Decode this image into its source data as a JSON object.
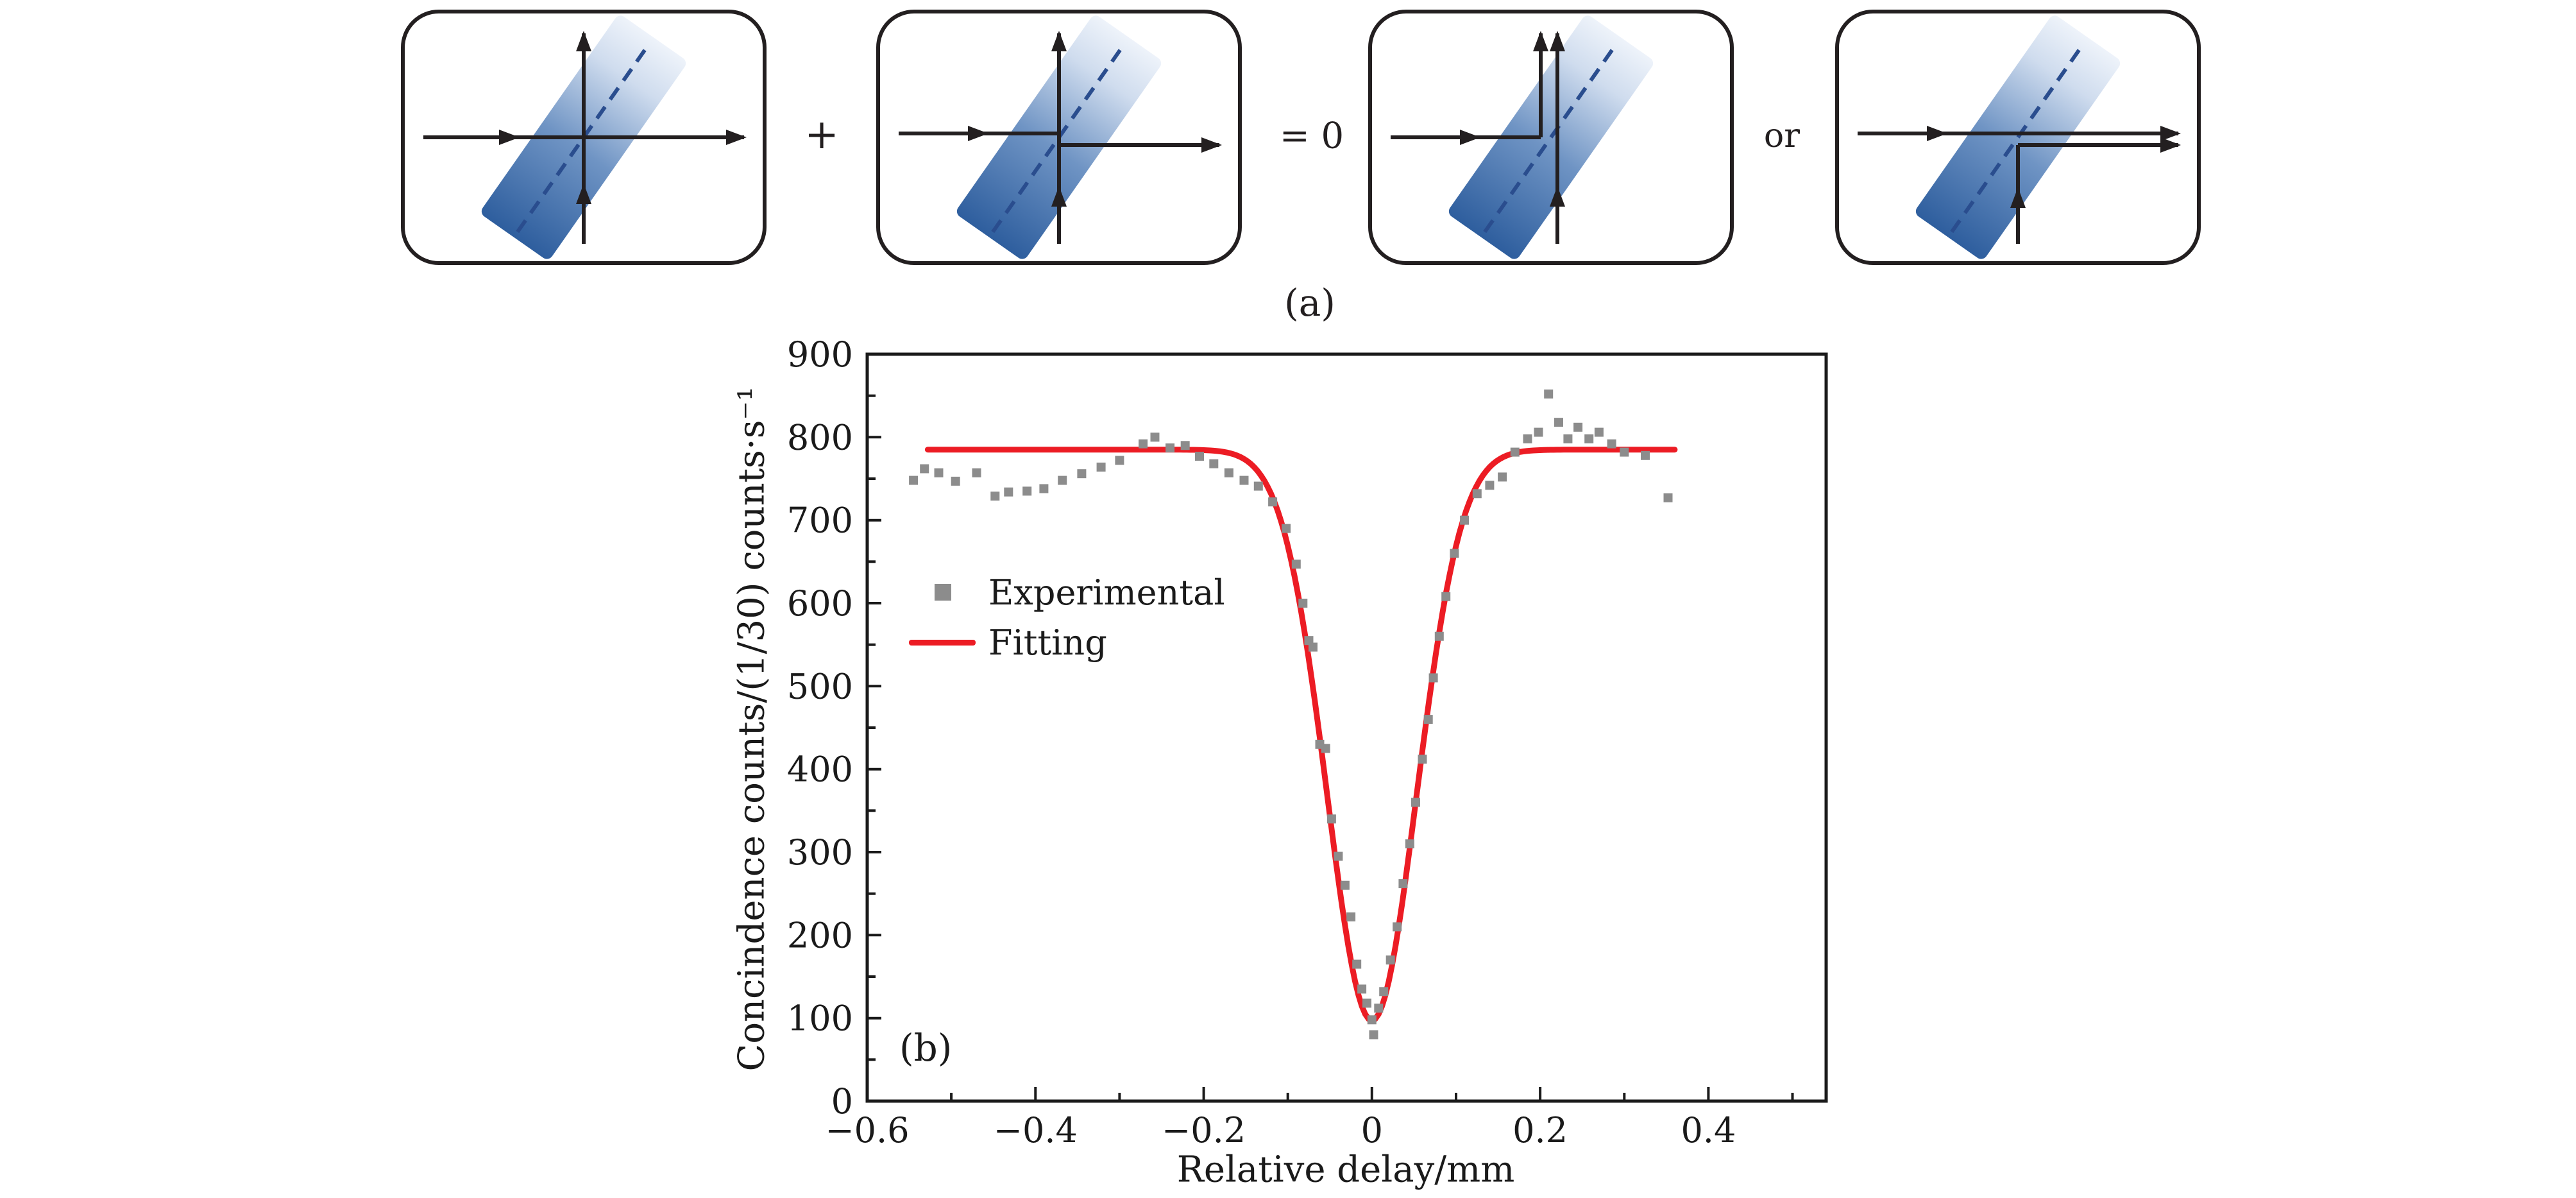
{
  "diagram": {
    "caption": "(a)",
    "operators": {
      "plus": "+",
      "equals_zero": "= 0",
      "or": "or"
    },
    "panels": [
      {
        "name": "both-photons-transmitted",
        "type": "cross"
      },
      {
        "name": "both-photons-reflected",
        "type": "reflect"
      },
      {
        "name": "both-photons-exit-top",
        "type": "both-up"
      },
      {
        "name": "both-photons-exit-right",
        "type": "both-right"
      }
    ],
    "colors": {
      "splitter_dark": "#2e5e9e",
      "splitter_mid": "#6f94c4",
      "splitter_mid2": "#cfdcee",
      "splitter_light": "#eef3fa",
      "dash": "#2a4d8e",
      "stroke": "#231f20"
    }
  },
  "chart_data": {
    "type": "scatter",
    "panel_label": "(b)",
    "xlabel": "Relative delay/mm",
    "ylabel": "Concindence counts/(1/30) counts·s⁻¹",
    "xlim": [
      -0.6,
      0.54
    ],
    "ylim": [
      0,
      900
    ],
    "xticks": [
      -0.6,
      -0.4,
      -0.2,
      0,
      0.2,
      0.4
    ],
    "xtick_labels": [
      "−0.6",
      "−0.4",
      "−0.2",
      "0",
      "0.2",
      "0.4"
    ],
    "yticks": [
      0,
      100,
      200,
      300,
      400,
      500,
      600,
      700,
      800,
      900
    ],
    "x_minor_step": 0.1,
    "y_minor_step": 50,
    "grid": false,
    "legend_position": "upper-left-inside",
    "legend": [
      {
        "label": "Experimental",
        "marker": "square",
        "color": "#8c8c8c"
      },
      {
        "label": "Fitting",
        "marker": "line",
        "color": "#ec1c24"
      }
    ],
    "series": [
      {
        "name": "Experimental",
        "type": "scatter"
      },
      {
        "name": "Fitting",
        "type": "line"
      }
    ],
    "experimental_points": [
      [
        -0.545,
        748
      ],
      [
        -0.532,
        762
      ],
      [
        -0.515,
        757
      ],
      [
        -0.495,
        747
      ],
      [
        -0.47,
        757
      ],
      [
        -0.448,
        729
      ],
      [
        -0.432,
        734
      ],
      [
        -0.41,
        735
      ],
      [
        -0.39,
        738
      ],
      [
        -0.368,
        748
      ],
      [
        -0.345,
        756
      ],
      [
        -0.322,
        764
      ],
      [
        -0.3,
        772
      ],
      [
        -0.272,
        792
      ],
      [
        -0.258,
        800
      ],
      [
        -0.24,
        787
      ],
      [
        -0.222,
        790
      ],
      [
        -0.205,
        777
      ],
      [
        -0.188,
        768
      ],
      [
        -0.17,
        757
      ],
      [
        -0.152,
        748
      ],
      [
        -0.135,
        741
      ],
      [
        -0.118,
        722
      ],
      [
        -0.102,
        690
      ],
      [
        -0.09,
        647
      ],
      [
        -0.082,
        600
      ],
      [
        -0.075,
        555
      ],
      [
        -0.07,
        547
      ],
      [
        -0.062,
        430
      ],
      [
        -0.055,
        425
      ],
      [
        -0.048,
        340
      ],
      [
        -0.04,
        295
      ],
      [
        -0.032,
        260
      ],
      [
        -0.025,
        222
      ],
      [
        -0.018,
        165
      ],
      [
        -0.012,
        135
      ],
      [
        -0.006,
        118
      ],
      [
        0.0,
        98
      ],
      [
        0.002,
        80
      ],
      [
        0.008,
        112
      ],
      [
        0.014,
        132
      ],
      [
        0.022,
        170
      ],
      [
        0.03,
        210
      ],
      [
        0.037,
        262
      ],
      [
        0.045,
        310
      ],
      [
        0.052,
        360
      ],
      [
        0.06,
        412
      ],
      [
        0.067,
        460
      ],
      [
        0.073,
        510
      ],
      [
        0.08,
        560
      ],
      [
        0.088,
        608
      ],
      [
        0.098,
        660
      ],
      [
        0.11,
        700
      ],
      [
        0.125,
        732
      ],
      [
        0.14,
        742
      ],
      [
        0.155,
        752
      ],
      [
        0.17,
        782
      ],
      [
        0.185,
        798
      ],
      [
        0.198,
        806
      ],
      [
        0.21,
        852
      ],
      [
        0.222,
        818
      ],
      [
        0.233,
        798
      ],
      [
        0.245,
        812
      ],
      [
        0.258,
        798
      ],
      [
        0.27,
        806
      ],
      [
        0.285,
        792
      ],
      [
        0.3,
        782
      ],
      [
        0.325,
        778
      ],
      [
        0.352,
        727
      ]
    ],
    "fit": {
      "model": "inverted_gaussian",
      "baseline": 785,
      "minimum": 97,
      "center": 0,
      "sigma": 0.053,
      "x_range": [
        -0.528,
        0.362
      ]
    },
    "colors": {
      "marker": "#8c8c8c",
      "fit_line": "#ec1c24",
      "axis": "#1a1a1a"
    }
  }
}
